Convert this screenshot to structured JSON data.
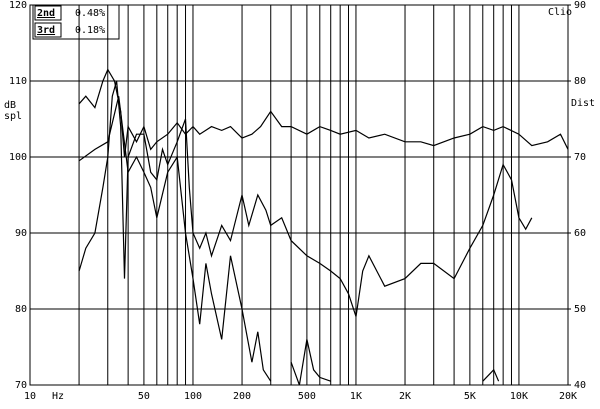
{
  "chart_data": {
    "type": "line",
    "x_label": "Hz",
    "y_label": "dB spl",
    "y2_label": "Dist",
    "brand": "Clio",
    "log_x": true,
    "xlim": [
      10,
      20000
    ],
    "ylim": [
      70,
      120
    ],
    "y2lim": [
      40,
      90
    ],
    "xticks": [
      10,
      50,
      100,
      200,
      500,
      {
        "value": 1000,
        "label": "1K"
      },
      {
        "value": 2000,
        "label": "2K"
      },
      {
        "value": 5000,
        "label": "5K"
      },
      {
        "value": 10000,
        "label": "10K"
      },
      {
        "value": 20000,
        "label": "20K"
      }
    ],
    "x_grid": [
      20,
      30,
      40,
      60,
      70,
      80,
      90,
      300,
      400,
      600,
      700,
      800,
      900,
      3000,
      4000,
      6000,
      7000,
      8000,
      9000
    ],
    "yticks": [
      70,
      80,
      90,
      100,
      110,
      120
    ],
    "y2ticks": [
      40,
      50,
      60,
      70,
      80,
      90
    ],
    "grid": true,
    "legend_names": [
      "2nd",
      "3rd"
    ],
    "legend_values": [
      0.48,
      0.18
    ],
    "legend_value_labels": [
      "0.48%",
      "0.18%"
    ],
    "series": [
      {
        "color": "#000000",
        "x": [
          20,
          22,
          25,
          28,
          30,
          33,
          36,
          38,
          40,
          45,
          50,
          55,
          60,
          70,
          80,
          90,
          100,
          110,
          130,
          150,
          170,
          200,
          230,
          260,
          300,
          350,
          400,
          500,
          600,
          700,
          800,
          1000,
          1200,
          1500,
          2000,
          2500,
          3000,
          4000,
          5000,
          6000,
          7000,
          8000,
          10000,
          12000,
          15000,
          18000,
          20000
        ],
        "values": [
          107,
          108,
          106.5,
          110,
          111.5,
          110,
          106,
          100,
          104,
          102,
          104,
          101,
          102,
          103,
          104.5,
          103,
          104,
          103,
          104,
          103.5,
          104,
          102.5,
          103,
          104,
          106,
          104,
          104,
          103,
          104,
          103.5,
          103,
          103.5,
          102.5,
          103,
          102,
          102,
          101.5,
          102.5,
          103,
          104,
          103.5,
          104,
          103,
          101.5,
          102,
          103,
          101
        ]
      },
      {
        "color": "#000000",
        "x": [
          20,
          22,
          25,
          28,
          30,
          32,
          34,
          36,
          38,
          40,
          45,
          50,
          55,
          60,
          65,
          70,
          80,
          90,
          95,
          100,
          110,
          120,
          130,
          150,
          170,
          200,
          220,
          250,
          280,
          300,
          350,
          400,
          500,
          600,
          700,
          800,
          900,
          1000,
          1100,
          1200,
          1500,
          2000,
          2500,
          3000,
          4000,
          5000,
          6000,
          7000,
          8000,
          9000,
          10000,
          11000,
          12000
        ],
        "values": [
          85,
          88,
          90,
          96,
          100,
          108,
          110,
          104,
          84,
          100,
          103,
          103,
          98,
          97,
          101,
          99,
          102,
          105,
          96,
          90,
          88,
          90,
          87,
          91,
          89,
          95,
          91,
          95,
          93,
          91,
          92,
          89,
          87,
          86,
          85,
          84,
          82,
          79,
          85,
          87,
          83,
          84,
          86,
          86,
          84,
          88,
          91,
          95,
          99,
          97,
          92,
          90.5,
          92
        ]
      },
      {
        "color": "#000000",
        "x": [
          20,
          25,
          30,
          35,
          40,
          45,
          50,
          55,
          60,
          70,
          80,
          90,
          100,
          110,
          120,
          130,
          150,
          170,
          200,
          230,
          250,
          270,
          300,
          340,
          400,
          450,
          500,
          550,
          600,
          700,
          750,
          6000,
          7000,
          7500,
          8000
        ],
        "values": [
          99.5,
          101,
          102,
          108,
          98,
          100,
          98,
          96,
          92,
          98,
          100,
          90,
          84,
          78,
          86,
          82,
          76,
          87,
          80,
          73,
          77,
          72,
          70.5,
          null,
          73,
          70,
          76,
          72,
          71,
          70.5,
          null,
          70.5,
          72,
          70.5,
          null
        ]
      }
    ]
  }
}
